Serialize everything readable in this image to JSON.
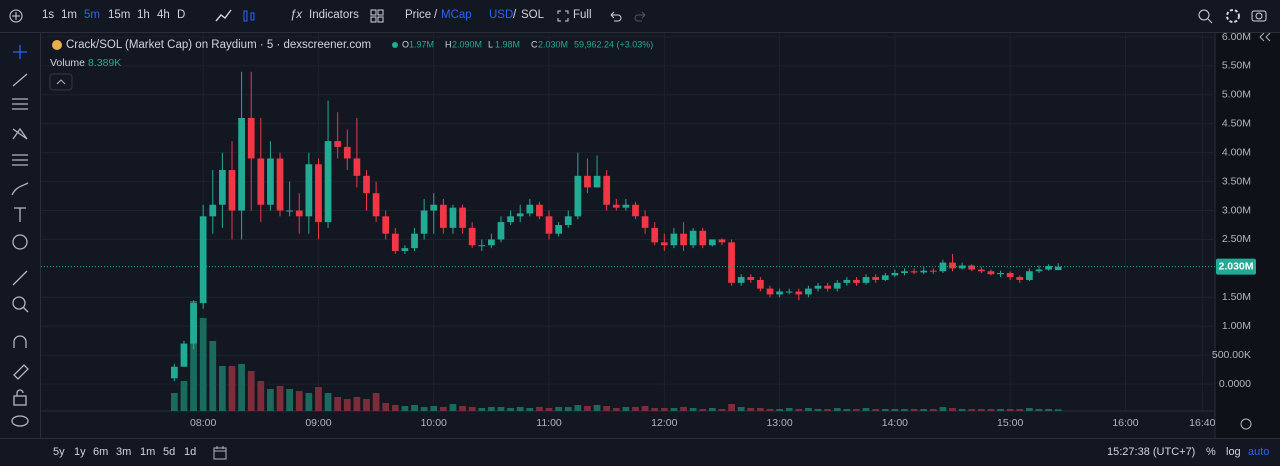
{
  "toolbar": {
    "intervals": [
      "1s",
      "1m",
      "5m",
      "15m",
      "1h",
      "4h",
      "D"
    ],
    "indicators": "Indicators",
    "price": "Price",
    "price_sep": "/",
    "mcap": "MCap",
    "usd": "USD",
    "currency_sep": "/",
    "sol": "SOL",
    "full": "Full"
  },
  "legend": {
    "title": "Crack/SOL (Market Cap) on Raydium · 5 · dexscreener.com",
    "o_key": "O",
    "o": "1.97M",
    "h_key": "H",
    "h": "2.090M",
    "l_key": "L",
    "l": "1.98M",
    "c_key": "C",
    "c": "2.030M",
    "change": "59,962.24 (+3.03%)",
    "volume_key": "Volume",
    "volume": "8.389K"
  },
  "chart_data": {
    "type": "candlestick",
    "grid": true,
    "up_color": "#22ab94",
    "down_color": "#f23645",
    "volume_up_color": "#1b6a5e",
    "volume_down_color": "#7d2d3a",
    "x": [
      465,
      470,
      475,
      480,
      485,
      490,
      495,
      500,
      505,
      510,
      515,
      520,
      525,
      530,
      535,
      540,
      545,
      550,
      555,
      560,
      565,
      570,
      575,
      580,
      585,
      590,
      595,
      600,
      605,
      610,
      615,
      620,
      625,
      630,
      635,
      640,
      645,
      650,
      655,
      660,
      665,
      670,
      675,
      680,
      685,
      690,
      695,
      700,
      705,
      710,
      715,
      720,
      725,
      730,
      735,
      740,
      745,
      750,
      755,
      760,
      765,
      770,
      775,
      780,
      785,
      790,
      795,
      800,
      805,
      810,
      815,
      820,
      825,
      830,
      835,
      840,
      845,
      850,
      855,
      860,
      865,
      870,
      875,
      880,
      885,
      890,
      895,
      900,
      905,
      910,
      915,
      920,
      925
    ],
    "open": [
      100000,
      300000,
      700000,
      1400000,
      2900000,
      3100000,
      3700000,
      3000000,
      4600000,
      3900000,
      3100000,
      3900000,
      3000000,
      3000000,
      2900000,
      3800000,
      2800000,
      4200000,
      4100000,
      3900000,
      3600000,
      3300000,
      2900000,
      2600000,
      2300000,
      2350000,
      2600000,
      3000000,
      3100000,
      2700000,
      3050000,
      2700000,
      2400000,
      2400000,
      2500000,
      2800000,
      2900000,
      2950000,
      3100000,
      2900000,
      2600000,
      2750000,
      2900000,
      3600000,
      3400000,
      3600000,
      3100000,
      3050000,
      3100000,
      2900000,
      2700000,
      2450000,
      2400000,
      2600000,
      2400000,
      2650000,
      2400000,
      2500000,
      2450000,
      1750000,
      1850000,
      1800000,
      1650000,
      1550000,
      1600000,
      1600000,
      1550000,
      1650000,
      1700000,
      1650000,
      1750000,
      1800000,
      1750000,
      1850000,
      1800000,
      1880000,
      1920000,
      1950000,
      1930000,
      1960000,
      1950000,
      2100000,
      2000000,
      2050000,
      1980000,
      1950000,
      1900000,
      1920000,
      1850000,
      1800000,
      1950000,
      1980000,
      1970000
    ],
    "high": [
      350000,
      750000,
      1450000,
      3100000,
      3700000,
      4000000,
      4200000,
      5400000,
      5400000,
      4600000,
      4200000,
      4000000,
      3500000,
      3300000,
      4000000,
      3900000,
      4900000,
      4700000,
      4400000,
      4600000,
      3700000,
      3500000,
      3000000,
      2700000,
      2400000,
      2700000,
      3200000,
      3300000,
      3200000,
      3100000,
      3100000,
      2800000,
      2500000,
      2600000,
      2900000,
      3000000,
      3100000,
      3200000,
      3150000,
      3000000,
      2800000,
      3000000,
      4000000,
      3900000,
      3950000,
      3700000,
      3200000,
      3200000,
      3150000,
      3000000,
      2800000,
      2600000,
      2700000,
      2800000,
      2700000,
      2700000,
      2500000,
      2520000,
      2500000,
      1900000,
      1900000,
      1850000,
      1700000,
      1650000,
      1650000,
      1650000,
      1700000,
      1750000,
      1750000,
      1800000,
      1850000,
      1850000,
      1900000,
      1900000,
      1920000,
      1980000,
      2000000,
      2000000,
      2020000,
      2000000,
      2150000,
      2250000,
      2100000,
      2070000,
      2020000,
      1980000,
      1960000,
      1950000,
      1880000,
      2000000,
      2050000,
      2070000,
      2090000
    ],
    "low": [
      50000,
      300000,
      600000,
      1300000,
      2600000,
      2700000,
      2500000,
      2500000,
      3000000,
      2800000,
      3000000,
      2900000,
      2900000,
      2600000,
      2600000,
      2500000,
      2700000,
      3900000,
      3700000,
      3400000,
      3000000,
      2800000,
      2500000,
      2250000,
      2250000,
      2300000,
      2500000,
      2600000,
      2600000,
      2600000,
      2600000,
      2350000,
      2300000,
      2350000,
      2450000,
      2750000,
      2800000,
      2900000,
      2850000,
      2500000,
      2550000,
      2700000,
      2850000,
      3300000,
      3400000,
      3000000,
      3000000,
      3000000,
      2850000,
      2600000,
      2400000,
      2300000,
      2350000,
      2300000,
      2350000,
      2350000,
      2380000,
      2400000,
      1700000,
      1700000,
      1750000,
      1600000,
      1500000,
      1500000,
      1550000,
      1450000,
      1500000,
      1600000,
      1600000,
      1600000,
      1700000,
      1700000,
      1720000,
      1750000,
      1780000,
      1850000,
      1880000,
      1900000,
      1900000,
      1900000,
      1920000,
      1950000,
      1980000,
      1950000,
      1920000,
      1880000,
      1850000,
      1800000,
      1750000,
      1780000,
      1920000,
      1960000,
      1980000
    ],
    "close": [
      300000,
      700000,
      1400000,
      2900000,
      3100000,
      3700000,
      3000000,
      4600000,
      3900000,
      3100000,
      3900000,
      3000000,
      3000000,
      2900000,
      3800000,
      2800000,
      4200000,
      4100000,
      3900000,
      3600000,
      3300000,
      2900000,
      2600000,
      2300000,
      2350000,
      2600000,
      3000000,
      3100000,
      2700000,
      3050000,
      2700000,
      2400000,
      2400000,
      2500000,
      2800000,
      2900000,
      2950000,
      3100000,
      2900000,
      2600000,
      2750000,
      2900000,
      3600000,
      3400000,
      3600000,
      3100000,
      3050000,
      3100000,
      2900000,
      2700000,
      2450000,
      2400000,
      2600000,
      2400000,
      2650000,
      2400000,
      2500000,
      2450000,
      1750000,
      1850000,
      1800000,
      1650000,
      1550000,
      1600000,
      1600000,
      1550000,
      1650000,
      1700000,
      1650000,
      1750000,
      1800000,
      1750000,
      1850000,
      1800000,
      1880000,
      1920000,
      1950000,
      1930000,
      1960000,
      1950000,
      2100000,
      2000000,
      2050000,
      1980000,
      1950000,
      1900000,
      1920000,
      1850000,
      1800000,
      1950000,
      1980000,
      2040000,
      2030000
    ],
    "volume": [
      90000,
      150000,
      550000,
      465000,
      350000,
      225000,
      225000,
      235000,
      200000,
      150000,
      110000,
      125000,
      110000,
      100000,
      90000,
      120000,
      90000,
      70000,
      60000,
      70000,
      60000,
      90000,
      40000,
      30000,
      25000,
      30000,
      20000,
      25000,
      20000,
      35000,
      25000,
      20000,
      15000,
      20000,
      20000,
      15000,
      20000,
      15000,
      20000,
      15000,
      20000,
      20000,
      30000,
      25000,
      30000,
      25000,
      15000,
      20000,
      20000,
      25000,
      15000,
      15000,
      15000,
      20000,
      15000,
      10000,
      15000,
      10000,
      35000,
      20000,
      15000,
      15000,
      10000,
      10000,
      15000,
      10000,
      15000,
      10000,
      10000,
      15000,
      10000,
      10000,
      15000,
      10000,
      10000,
      10000,
      10000,
      10000,
      10000,
      10000,
      20000,
      15000,
      10000,
      10000,
      10000,
      10000,
      10000,
      10000,
      10000,
      15000,
      10000,
      10000,
      8389
    ],
    "xlim": [
      395.6,
      1006.6
    ],
    "xticks": [
      {
        "value": 480,
        "label": "08:00"
      },
      {
        "value": 540,
        "label": "09:00"
      },
      {
        "value": 600,
        "label": "10:00"
      },
      {
        "value": 660,
        "label": "11:00"
      },
      {
        "value": 720,
        "label": "12:00"
      },
      {
        "value": 780,
        "label": "13:00"
      },
      {
        "value": 840,
        "label": "14:00"
      },
      {
        "value": 900,
        "label": "15:00"
      },
      {
        "value": 960,
        "label": "16:00"
      },
      {
        "value": 1000,
        "label": "16:40"
      }
    ],
    "ylim": [
      -465517,
      6068966
    ],
    "yticks": [
      {
        "value": 6000000,
        "label": "6.00M"
      },
      {
        "value": 5500000,
        "label": "5.50M"
      },
      {
        "value": 5000000,
        "label": "5.00M"
      },
      {
        "value": 4500000,
        "label": "4.50M"
      },
      {
        "value": 4000000,
        "label": "4.00M"
      },
      {
        "value": 3500000,
        "label": "3.50M"
      },
      {
        "value": 3000000,
        "label": "3.00M"
      },
      {
        "value": 2500000,
        "label": "2.50M"
      },
      {
        "value": 1500000,
        "label": "1.50M"
      },
      {
        "value": 1000000,
        "label": "1.00M"
      },
      {
        "value": 500000,
        "label": "500.00K"
      },
      {
        "value": 0,
        "label": "0.0000"
      }
    ],
    "last_price": {
      "value": 2030000,
      "label": "2.030M"
    }
  },
  "bottom_bar": {
    "ranges": [
      "5y",
      "1y",
      "6m",
      "3m",
      "1m",
      "5d",
      "1d"
    ],
    "clock": "15:27:38 (UTC+7)",
    "percent": "%",
    "log": "log",
    "auto": "auto"
  }
}
